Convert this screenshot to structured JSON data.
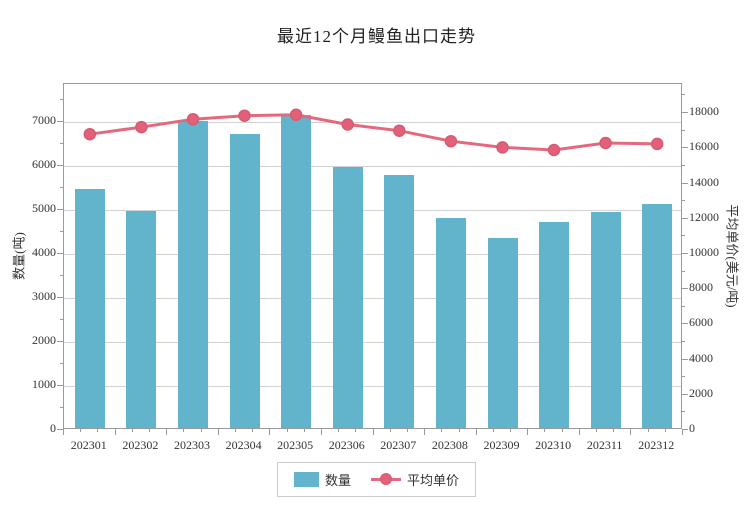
{
  "chart_data": {
    "type": "combo-bar-line",
    "title": "最近12个月鳗鱼出口走势",
    "categories": [
      "202301",
      "202302",
      "202303",
      "202304",
      "202305",
      "202306",
      "202307",
      "202308",
      "202309",
      "202310",
      "202311",
      "202312"
    ],
    "series": [
      {
        "name": "数量",
        "kind": "bar",
        "y_axis": "left",
        "color": "#61B4CC",
        "values": [
          5420,
          4930,
          6980,
          6680,
          7110,
          5920,
          5740,
          4770,
          4320,
          4670,
          4900,
          5080
        ]
      },
      {
        "name": "平均单价",
        "kind": "line",
        "y_axis": "right",
        "color": "#E5697E",
        "marker_color": "#E2607A",
        "marker_edge_color": "#D85A71",
        "values": [
          16800,
          17200,
          17650,
          17850,
          17900,
          17350,
          17000,
          16400,
          16050,
          15900,
          16300,
          16250
        ]
      }
    ],
    "left_axis": {
      "label": "数量(吨)",
      "min": 0,
      "max_render": 7860,
      "tick_step": 1000,
      "tick_max": 7000,
      "minor_step": 500
    },
    "right_axis": {
      "label": "平均单价(美元/吨)",
      "min": 0,
      "max_render": 19650,
      "tick_step": 2000,
      "tick_max": 18000,
      "minor_step": 1000
    },
    "legend_position": "bottom",
    "grid": true
  },
  "colors": {
    "background": "#FFFFFF",
    "grid": "#D2D2D2",
    "plot_border": "#9A9A9A",
    "tick": "#9A9A9A",
    "text": "#333333"
  }
}
